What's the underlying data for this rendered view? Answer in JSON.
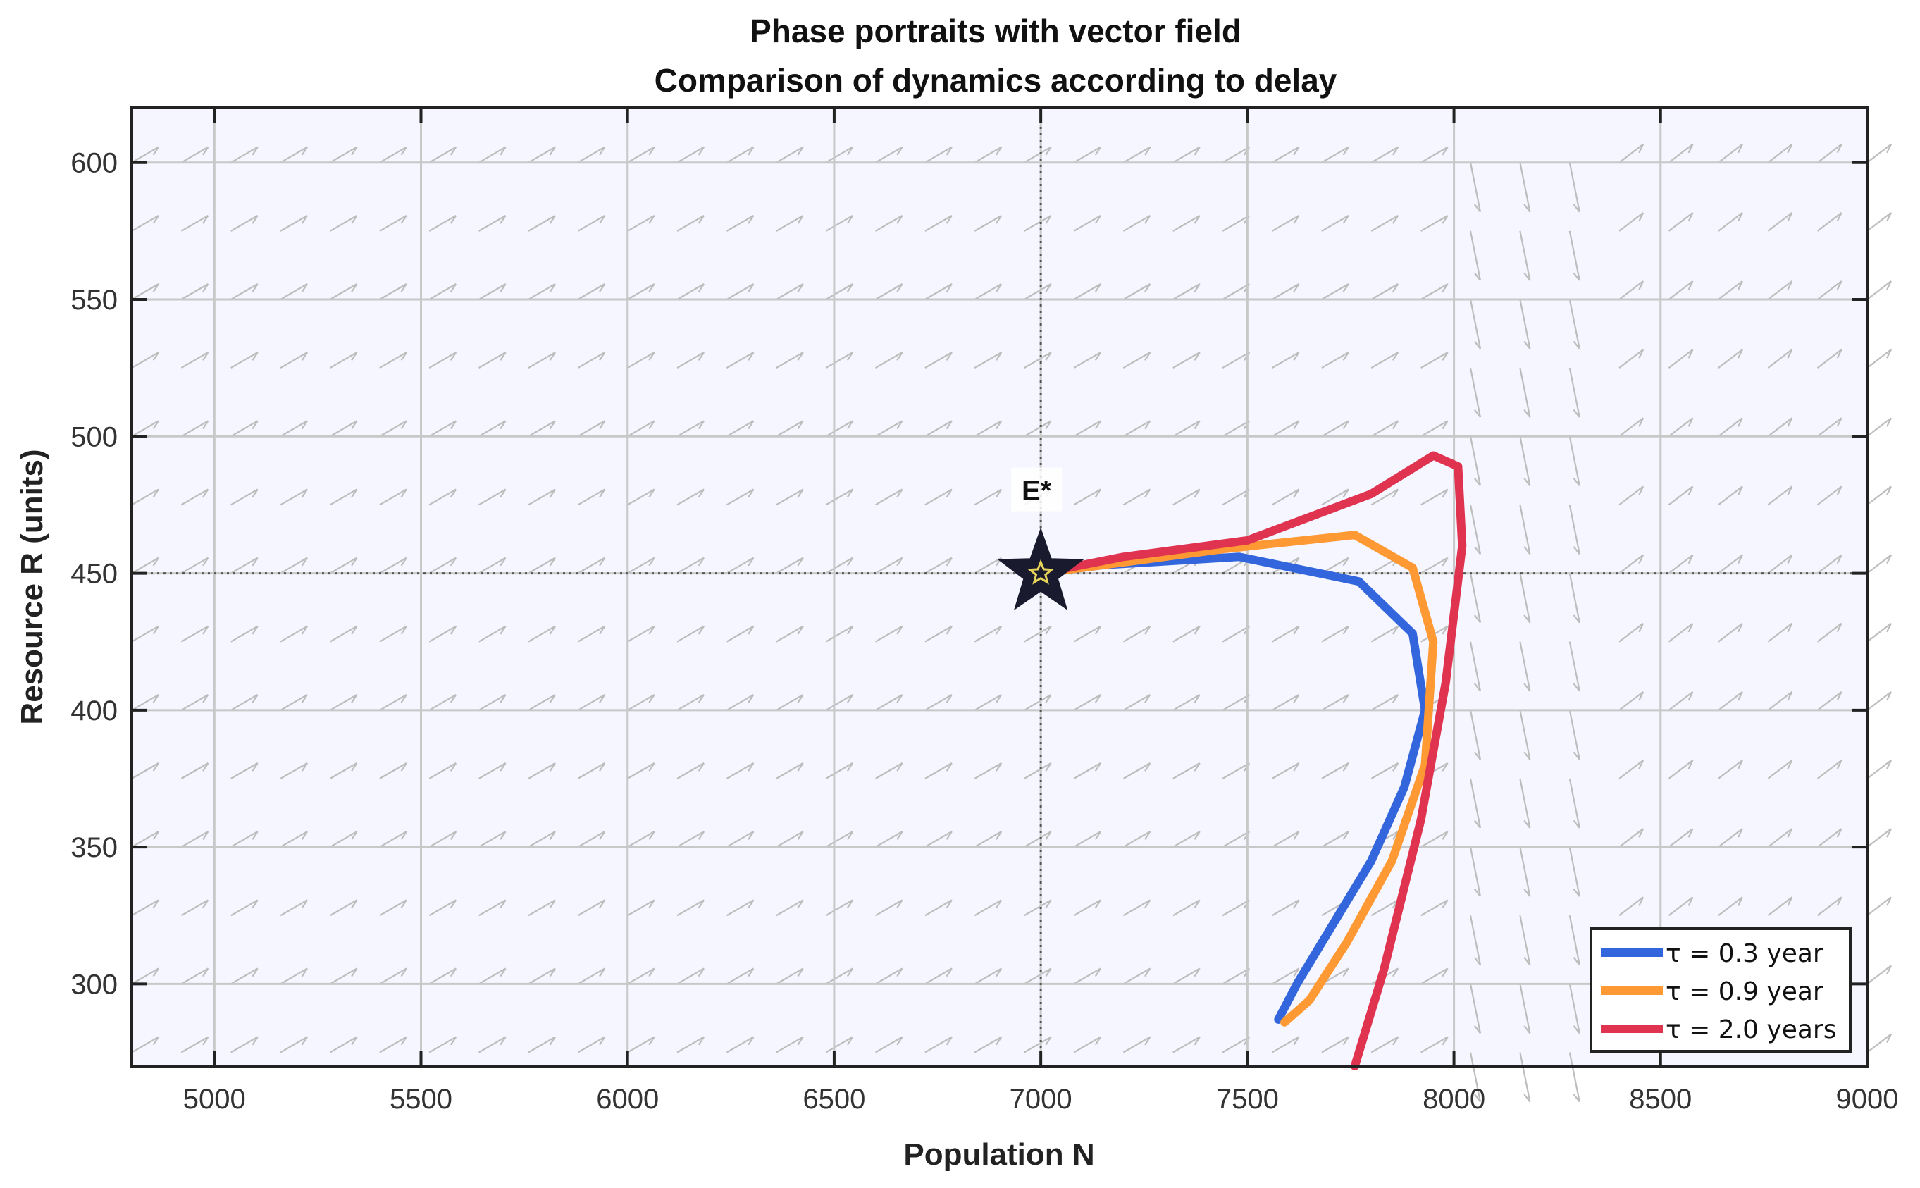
{
  "chart_data": {
    "type": "line",
    "title": [
      "Phase portraits with vector field",
      "Comparison of dynamics according to delay"
    ],
    "xlabel": "Population N",
    "ylabel": "Resource R (units)",
    "xlim": [
      4800,
      9000
    ],
    "ylim": [
      270,
      620
    ],
    "xticks": [
      5000,
      5500,
      6000,
      6500,
      7000,
      7500,
      8000,
      8500,
      9000
    ],
    "yticks": [
      300,
      350,
      400,
      450,
      500,
      550,
      600
    ],
    "grid": true,
    "legend_position": "bottom-right",
    "equilibrium": {
      "label": "E*",
      "x": 7000,
      "y": 450
    },
    "series": [
      {
        "name": "τ = 0.3 year",
        "color": "#3366dd",
        "x": [
          7000,
          7150,
          7480,
          7770,
          7900,
          7930,
          7880,
          7800,
          7700,
          7620,
          7575,
          7585
        ],
        "y": [
          450,
          453,
          456,
          447,
          428,
          400,
          372,
          345,
          320,
          300,
          287,
          290
        ]
      },
      {
        "name": "τ = 0.9 year",
        "color": "#ff9933",
        "x": [
          7000,
          7200,
          7450,
          7760,
          7900,
          7950,
          7930,
          7850,
          7740,
          7650,
          7590
        ],
        "y": [
          450,
          454,
          459,
          464,
          452,
          425,
          380,
          345,
          315,
          294,
          286
        ]
      },
      {
        "name": "τ = 2.0 years",
        "color": "#e03350",
        "x": [
          7000,
          7200,
          7500,
          7800,
          7950,
          8010,
          8020,
          7980,
          7920,
          7830,
          7760
        ],
        "y": [
          450,
          456,
          462,
          479,
          493,
          489,
          460,
          410,
          360,
          305,
          270
        ]
      }
    ],
    "colors": {
      "background": "#f5f6ff",
      "grid": "#c8c8c8",
      "vector_field": "#bdbdbd",
      "marker": "#1a1a2e",
      "marker_inner": "#e6d35a"
    }
  }
}
